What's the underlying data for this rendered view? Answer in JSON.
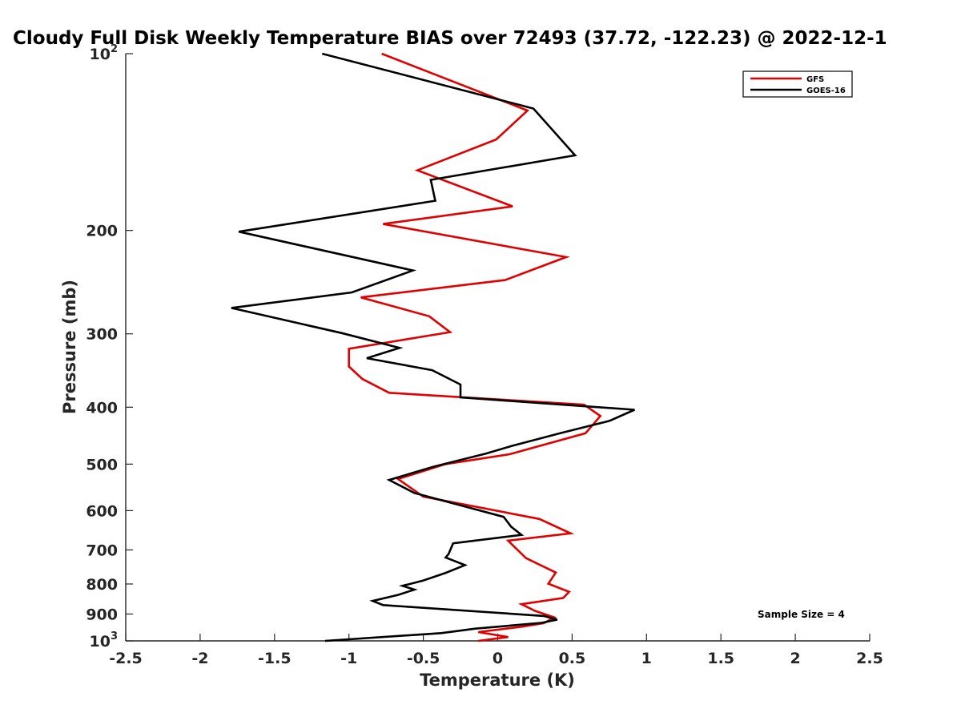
{
  "chart_data": {
    "type": "line",
    "title": "Cloudy Full Disk Weekly Temperature BIAS over 72493 (37.72, -122.23) @ 2022-12-1",
    "xlabel": "Temperature (K)",
    "ylabel": "Pressure (mb)",
    "xlim": [
      -2.5,
      2.5
    ],
    "ylim": [
      100,
      1000
    ],
    "yscale": "log",
    "y_reversed": true,
    "grid": false,
    "legend_position": "top-right",
    "x_ticks": [
      "-2.5",
      "-2",
      "-1.5",
      "-1",
      "-0.5",
      "0",
      "0.5",
      "1",
      "1.5",
      "2",
      "2.5"
    ],
    "y_ticks": [
      {
        "value": 100,
        "base": "10",
        "exp": "2"
      },
      {
        "value": 200,
        "label": "200"
      },
      {
        "value": 300,
        "label": "300"
      },
      {
        "value": 400,
        "label": "400"
      },
      {
        "value": 500,
        "label": "500"
      },
      {
        "value": 600,
        "label": "600"
      },
      {
        "value": 700,
        "label": "700"
      },
      {
        "value": 800,
        "label": "800"
      },
      {
        "value": 900,
        "label": "900"
      },
      {
        "value": 1000,
        "base": "10",
        "exp": "3"
      }
    ],
    "annotation": "Sample Size = 4",
    "series": [
      {
        "name": "GFS",
        "color": "#e00000",
        "points": [
          [
            -0.78,
            100
          ],
          [
            0.2,
            125
          ],
          [
            -0.01,
            140
          ],
          [
            -0.54,
            158
          ],
          [
            0.1,
            182
          ],
          [
            -0.77,
            195
          ],
          [
            0.46,
            222
          ],
          [
            0.05,
            243
          ],
          [
            -0.92,
            260
          ],
          [
            -0.46,
            280
          ],
          [
            -0.32,
            298
          ],
          [
            -1.0,
            318
          ],
          [
            -1.0,
            341
          ],
          [
            -0.91,
            358
          ],
          [
            -0.73,
            378
          ],
          [
            0.58,
            396
          ],
          [
            0.69,
            414
          ],
          [
            0.59,
            443
          ],
          [
            0.08,
            481
          ],
          [
            -0.35,
            500
          ],
          [
            -0.67,
            530
          ],
          [
            -0.5,
            568
          ],
          [
            0.28,
            620
          ],
          [
            0.49,
            656
          ],
          [
            0.07,
            675
          ],
          [
            0.19,
            723
          ],
          [
            0.39,
            765
          ],
          [
            0.34,
            799
          ],
          [
            0.48,
            825
          ],
          [
            0.44,
            845
          ],
          [
            0.16,
            866
          ],
          [
            0.25,
            889
          ],
          [
            0.38,
            912
          ],
          [
            0.31,
            933
          ],
          [
            0.16,
            946
          ],
          [
            -0.13,
            966
          ],
          [
            0.07,
            985
          ],
          [
            -0.13,
            1000
          ]
        ]
      },
      {
        "name": "GOES-16",
        "color": "#000000",
        "points": [
          [
            -1.18,
            100
          ],
          [
            0.24,
            124
          ],
          [
            0.52,
            149
          ],
          [
            -0.45,
            164
          ],
          [
            -0.42,
            178
          ],
          [
            -1.74,
            201
          ],
          [
            -0.57,
            234
          ],
          [
            -0.98,
            255
          ],
          [
            -1.79,
            271
          ],
          [
            -1.05,
            299
          ],
          [
            -0.66,
            317
          ],
          [
            -0.88,
            330
          ],
          [
            -0.44,
            346
          ],
          [
            -0.25,
            366
          ],
          [
            -0.25,
            385
          ],
          [
            0.92,
            404
          ],
          [
            0.75,
            422
          ],
          [
            0.42,
            443
          ],
          [
            0.09,
            466
          ],
          [
            -0.08,
            480
          ],
          [
            -0.43,
            505
          ],
          [
            -0.73,
            532
          ],
          [
            -0.56,
            560
          ],
          [
            0.04,
            615
          ],
          [
            0.09,
            639
          ],
          [
            0.16,
            660
          ],
          [
            -0.3,
            682
          ],
          [
            -0.33,
            711
          ],
          [
            -0.35,
            721
          ],
          [
            -0.22,
            743
          ],
          [
            -0.35,
            766
          ],
          [
            -0.5,
            789
          ],
          [
            -0.64,
            806
          ],
          [
            -0.56,
            818
          ],
          [
            -0.67,
            835
          ],
          [
            -0.84,
            855
          ],
          [
            -0.77,
            869
          ],
          [
            0.31,
            907
          ],
          [
            0.4,
            920
          ],
          [
            0.29,
            932
          ],
          [
            -0.15,
            953
          ],
          [
            -0.38,
            970
          ],
          [
            -1.16,
            1000
          ]
        ]
      }
    ]
  }
}
